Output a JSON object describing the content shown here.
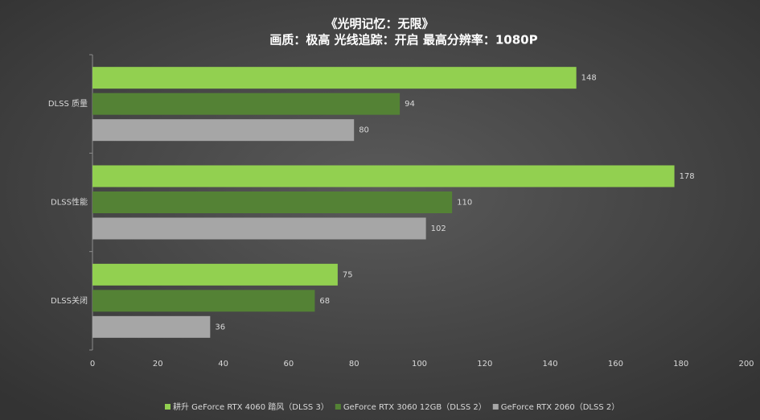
{
  "chart_data": {
    "type": "hbar",
    "title": "《光明记忆：无限》",
    "subtitle": "画质：极高  光线追踪：开启  最高分辨率：1080P",
    "categories": [
      "DLSS 质量",
      "DLSS性能",
      "DLSS关闭"
    ],
    "series": [
      {
        "name": "耕升 GeForce RTX 4060 踏风（DLSS 3）",
        "color": "#92d050",
        "values": [
          148,
          178,
          75
        ]
      },
      {
        "name": "GeForce RTX 3060 12GB（DLSS 2）",
        "color": "#548235",
        "values": [
          94,
          110,
          68
        ]
      },
      {
        "name": "GeForce RTX 2060（DLSS 2）",
        "color": "#a6a6a6",
        "values": [
          80,
          102,
          36
        ]
      }
    ],
    "xlim": [
      0,
      200
    ],
    "xticks": [
      0,
      20,
      40,
      60,
      80,
      100,
      120,
      140,
      160,
      180,
      200
    ],
    "legend": "bottom"
  }
}
